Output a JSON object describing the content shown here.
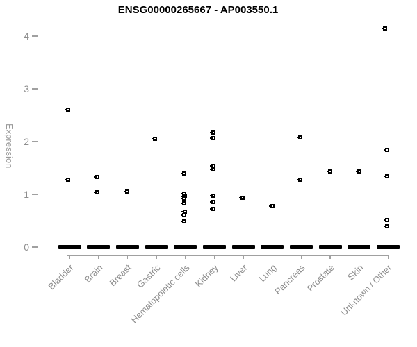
{
  "chart_data": {
    "type": "scatter",
    "title": "ENSG00000265667 - AP003550.1",
    "ylabel": "Expression",
    "ylim": [
      0,
      4.2
    ],
    "yticks": [
      0,
      1,
      2,
      3,
      4
    ],
    "grid": false,
    "legend": "none",
    "marker": {
      "shape": "small-black-square-white-center",
      "color": "#000000"
    },
    "axis_color": "#a0a0a0",
    "tick_label_color": "#8e8e8e",
    "title_color": "#000000",
    "note": "Each category also has a dense cluster of overlapping points at Expression = 0, drawn as a thick black bar.",
    "groups": [
      {
        "label": "Bladder",
        "points": [
          {
            "v": 2.6,
            "dx": -2
          },
          {
            "v": 1.27,
            "dx": -2
          }
        ],
        "zero_cluster": true
      },
      {
        "label": "Brain",
        "points": [
          {
            "v": 1.33,
            "dx": -2
          },
          {
            "v": 1.04,
            "dx": -2
          }
        ],
        "zero_cluster": true
      },
      {
        "label": "Breast",
        "points": [
          {
            "v": 1.05,
            "dx": 0
          }
        ],
        "zero_cluster": true
      },
      {
        "label": "Gastric",
        "points": [
          {
            "v": 2.05,
            "dx": -2
          }
        ],
        "zero_cluster": true
      },
      {
        "label": "Hematopoietic cells",
        "points": [
          {
            "v": 1.39,
            "dx": -2
          },
          {
            "v": 1.01,
            "dx": -2
          },
          {
            "v": 0.96,
            "dx": -1
          },
          {
            "v": 0.92,
            "dx": -2
          },
          {
            "v": 0.83,
            "dx": -2
          },
          {
            "v": 0.67,
            "dx": -1
          },
          {
            "v": 0.61,
            "dx": -2
          },
          {
            "v": 0.49,
            "dx": -2
          }
        ],
        "zero_cluster": true
      },
      {
        "label": "Kidney",
        "points": [
          {
            "v": 2.17,
            "dx": -1
          },
          {
            "v": 2.06,
            "dx": -1
          },
          {
            "v": 1.54,
            "dx": -1
          },
          {
            "v": 1.48,
            "dx": -1
          },
          {
            "v": 0.98,
            "dx": -1
          },
          {
            "v": 0.86,
            "dx": -1
          },
          {
            "v": 0.72,
            "dx": -1
          }
        ],
        "zero_cluster": true
      },
      {
        "label": "Liver",
        "points": [
          {
            "v": 0.93,
            "dx": -1
          }
        ],
        "zero_cluster": true
      },
      {
        "label": "Lung",
        "points": [
          {
            "v": 0.77,
            "dx": 0
          }
        ],
        "zero_cluster": true
      },
      {
        "label": "Pancreas",
        "points": [
          {
            "v": 2.08,
            "dx": -1
          },
          {
            "v": 1.27,
            "dx": -1
          }
        ],
        "zero_cluster": true
      },
      {
        "label": "Prostate",
        "points": [
          {
            "v": 1.44,
            "dx": 0
          }
        ],
        "zero_cluster": true
      },
      {
        "label": "Skin",
        "points": [
          {
            "v": 1.43,
            "dx": 0
          }
        ],
        "zero_cluster": true
      },
      {
        "label": "Unknown / Other",
        "points": [
          {
            "v": 4.14,
            "dx": -4
          },
          {
            "v": 1.84,
            "dx": -1
          },
          {
            "v": 1.34,
            "dx": -1
          },
          {
            "v": 0.51,
            "dx": -1
          },
          {
            "v": 0.4,
            "dx": -1
          }
        ],
        "zero_cluster": true
      }
    ]
  }
}
